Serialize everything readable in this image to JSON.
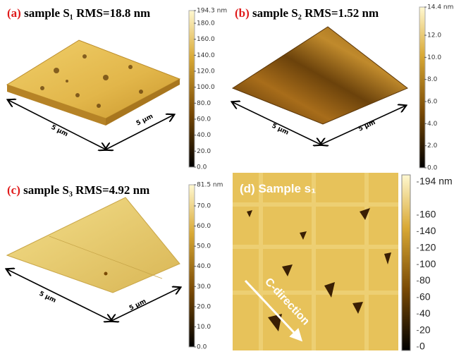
{
  "panels": [
    {
      "label": "(a)",
      "title": "sample S₁ RMS=18.8 nm",
      "dims": [
        "5 µm",
        "5 µm"
      ],
      "colorbar": [
        "194.3 nm",
        "180.0",
        "160.0",
        "140.0",
        "120.0",
        "100.0",
        "80.0",
        "60.0",
        "40.0",
        "20.0",
        "0.0"
      ]
    },
    {
      "label": "(b)",
      "title": "sample S₂  RMS=1.52 nm",
      "dims": [
        "5 µm",
        "5 µm"
      ],
      "colorbar": [
        "14.4 nm",
        "12.0",
        "10.0",
        "8.0",
        "6.0",
        "4.0",
        "2.0",
        "0.0"
      ]
    },
    {
      "label": "(c)",
      "title": "sample S₃   RMS=4.92 nm",
      "dims": [
        "5 µm",
        "5 µm"
      ],
      "colorbar": [
        "81.5 nm",
        "70.0",
        "60.0",
        "50.0",
        "40.0",
        "30.0",
        "20.0",
        "10.0",
        "0.0"
      ]
    },
    {
      "label": "(d)",
      "title": "Sample s₁",
      "annotation": "C-direction",
      "colorbar": [
        "194 nm",
        "160",
        "140",
        "120",
        "100",
        "80",
        "60",
        "40",
        "20",
        "0"
      ]
    }
  ]
}
